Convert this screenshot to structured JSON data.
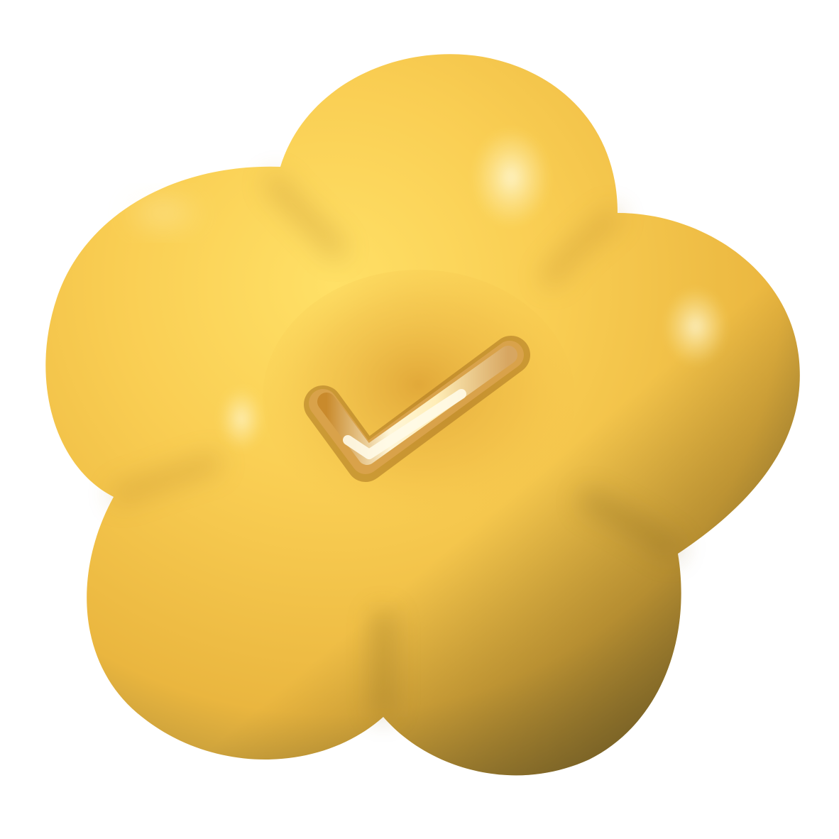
{
  "badge": {
    "shape": "five-petal-flower",
    "icon": "checkmark-icon",
    "colors": {
      "background": "#ffffff",
      "petal_light": "#ffe066",
      "petal_base": "#f7c54a",
      "petal_mid": "#e9b43c",
      "petal_shadow": "#7a6a32",
      "check_groove_dark": "#c98a2c",
      "check_groove_light": "#fff6d8"
    }
  }
}
